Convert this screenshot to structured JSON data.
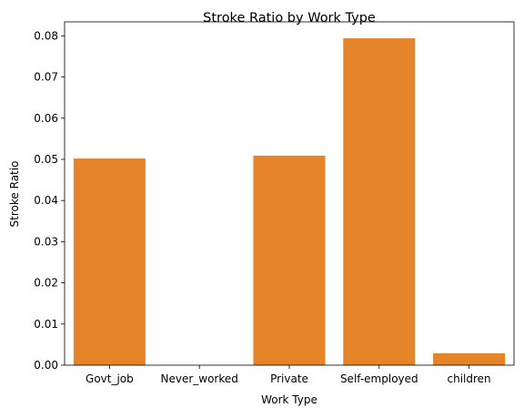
{
  "chart_data": {
    "type": "bar",
    "title": "Stroke Ratio by Work Type",
    "xlabel": "Work Type",
    "ylabel": "Stroke Ratio",
    "categories": [
      "Govt_job",
      "Never_worked",
      "Private",
      "Self-employed",
      "children"
    ],
    "values": [
      0.0502,
      0.0,
      0.0509,
      0.0794,
      0.0029
    ],
    "ylim": [
      0,
      0.0834
    ],
    "yticks": [
      "0.00",
      "0.01",
      "0.02",
      "0.03",
      "0.04",
      "0.05",
      "0.06",
      "0.07",
      "0.08"
    ],
    "bar_color": "#e6842a",
    "grid": false,
    "legend": "none"
  }
}
